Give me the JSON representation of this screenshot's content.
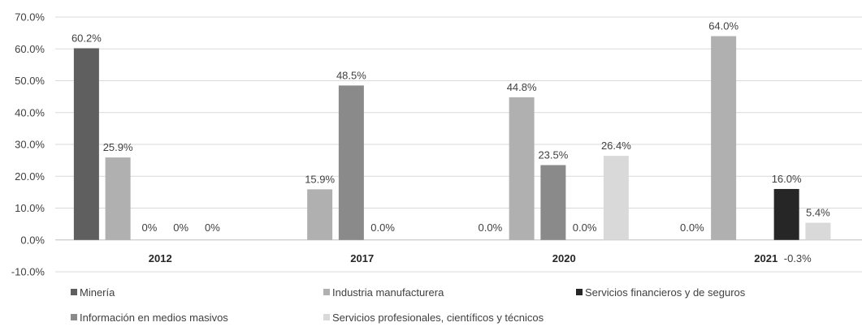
{
  "chart_data": {
    "type": "bar",
    "categories": [
      "2012",
      "2017",
      "2020",
      "2021"
    ],
    "ylim": [
      -0.1,
      0.7
    ],
    "yticks": [
      -0.1,
      0,
      0.1,
      0.2,
      0.3,
      0.4,
      0.5,
      0.6,
      0.7
    ],
    "ytick_labels": [
      "-10.0%",
      "0.0%",
      "10.0%",
      "20.0%",
      "30.0%",
      "40.0%",
      "50.0%",
      "60.0%",
      "70.0%"
    ],
    "grid": true,
    "legend_position": "bottom",
    "series": [
      {
        "name": "Minería",
        "color": "#5f5f5f",
        "values": [
          0.602,
          null,
          0.0,
          0.0
        ],
        "labels": [
          "60.2%",
          "",
          "0.0%",
          "0.0%"
        ]
      },
      {
        "name": "Industria manufacturera",
        "color": "#b0b0b0",
        "values": [
          0.259,
          0.159,
          0.448,
          0.64
        ],
        "labels": [
          "25.9%",
          "15.9%",
          "44.8%",
          "64.0%"
        ]
      },
      {
        "name": "Información en medios masivos",
        "color": "#8a8a8a",
        "values": [
          0.0,
          0.485,
          0.235,
          null
        ],
        "labels": [
          "0%",
          "48.5%",
          "23.5%",
          ""
        ]
      },
      {
        "name": "Servicios financieros y de seguros",
        "color": "#262626",
        "values": [
          0.0,
          0.0,
          0.0,
          0.16
        ],
        "labels": [
          "0%",
          "0.0%",
          "0.0%",
          "16.0%"
        ]
      },
      {
        "name": "Servicios profesionales, científicos y técnicos",
        "color": "#d9d9d9",
        "values": [
          0.0,
          null,
          0.264,
          0.054
        ],
        "labels": [
          "0%",
          "",
          "26.4%",
          "5.4%"
        ]
      }
    ],
    "extra_labels": [
      {
        "category": "2021",
        "text": "-0.3%"
      }
    ],
    "legend_order": [
      "Minería",
      "Industria manufacturera",
      "Servicios financieros y de seguros",
      "Información en medios masivos",
      "Servicios profesionales, científicos y técnicos"
    ]
  }
}
